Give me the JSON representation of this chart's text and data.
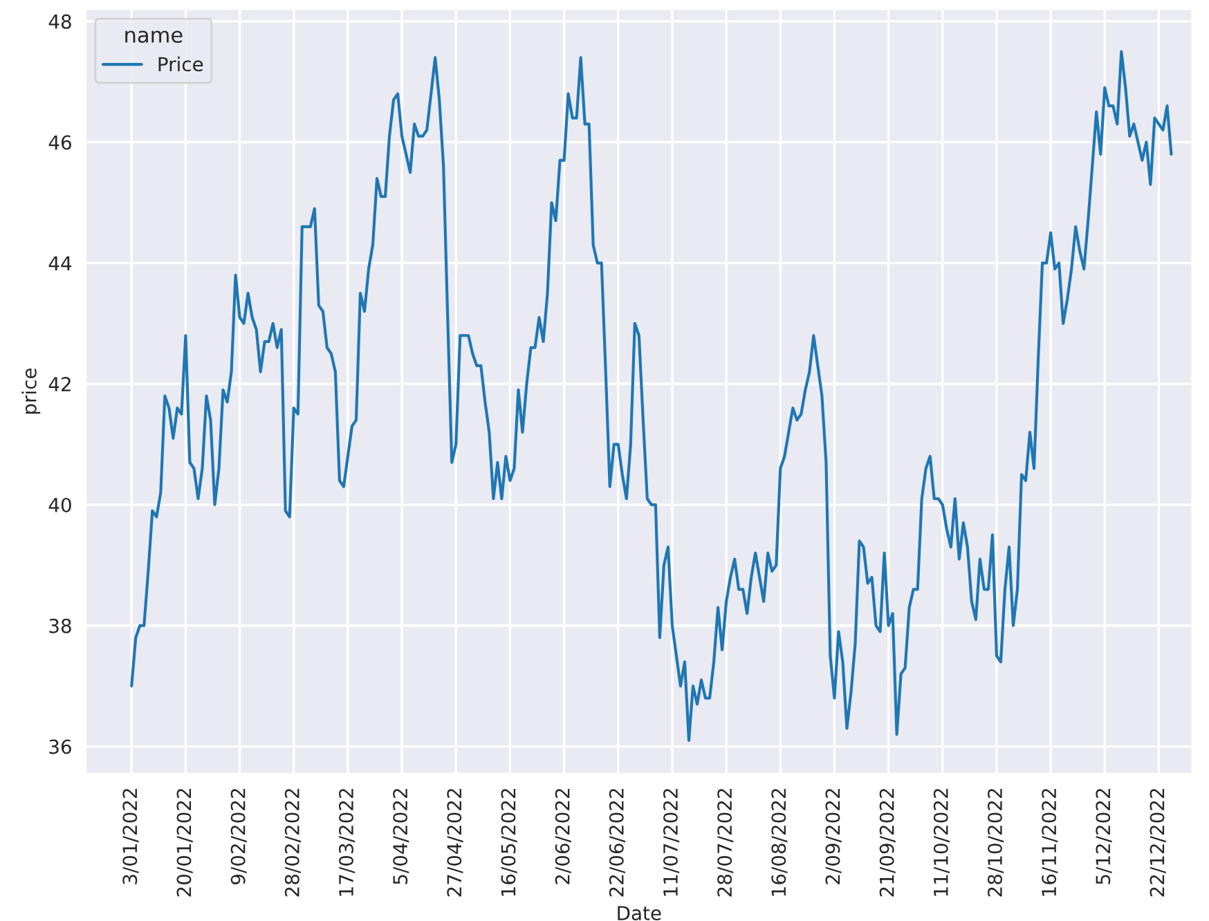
{
  "chart_data": {
    "type": "line",
    "xlabel": "Date",
    "ylabel": "price",
    "legend_title": "name",
    "legend": "top left",
    "grid": true,
    "ylim": [
      35.55,
      48.2
    ],
    "yticks": [
      36,
      38,
      40,
      42,
      44,
      46,
      48
    ],
    "categories": [
      "3/01/2022",
      null,
      null,
      null,
      null,
      null,
      null,
      null,
      null,
      null,
      null,
      null,
      null,
      "20/01/2022",
      null,
      null,
      null,
      null,
      null,
      null,
      null,
      null,
      null,
      null,
      null,
      null,
      "9/02/2022",
      null,
      null,
      null,
      null,
      null,
      null,
      null,
      null,
      null,
      null,
      null,
      null,
      "28/02/2022",
      null,
      null,
      null,
      null,
      null,
      null,
      null,
      null,
      null,
      null,
      null,
      null,
      "17/03/2022",
      null,
      null,
      null,
      null,
      null,
      null,
      null,
      null,
      null,
      null,
      null,
      null,
      "5/04/2022",
      null,
      null,
      null,
      null,
      null,
      null,
      null,
      null,
      null,
      null,
      null,
      null,
      "27/04/2022",
      null,
      null,
      null,
      null,
      null,
      null,
      null,
      null,
      null,
      null,
      null,
      null,
      "16/05/2022",
      null,
      null,
      null,
      null,
      null,
      null,
      null,
      null,
      null,
      null,
      null,
      null,
      "2/06/2022",
      null,
      null,
      null,
      null,
      null,
      null,
      null,
      null,
      null,
      null,
      null,
      null,
      "22/06/2022",
      null,
      null,
      null,
      null,
      null,
      null,
      null,
      null,
      null,
      null,
      null,
      null,
      "11/07/2022",
      null,
      null,
      null,
      null,
      null,
      null,
      null,
      null,
      null,
      null,
      null,
      null,
      "28/07/2022",
      null,
      null,
      null,
      null,
      null,
      null,
      null,
      null,
      null,
      null,
      null,
      null,
      "16/08/2022",
      null,
      null,
      null,
      null,
      null,
      null,
      null,
      null,
      null,
      null,
      null,
      null,
      "2/09/2022",
      null,
      null,
      null,
      null,
      null,
      null,
      null,
      null,
      null,
      null,
      null,
      null,
      "21/09/2022",
      null,
      null,
      null,
      null,
      null,
      null,
      null,
      null,
      null,
      null,
      null,
      null,
      "11/10/2022",
      null,
      null,
      null,
      null,
      null,
      null,
      null,
      null,
      null,
      null,
      null,
      null,
      "28/10/2022",
      null,
      null,
      null,
      null,
      null,
      null,
      null,
      null,
      null,
      null,
      null,
      null,
      "16/11/2022",
      null,
      null,
      null,
      null,
      null,
      null,
      null,
      null,
      null,
      null,
      null,
      null,
      "5/12/2022",
      null,
      null,
      null,
      null,
      null,
      null,
      null,
      null,
      null,
      null,
      null,
      null,
      "22/12/2022",
      null,
      null,
      null
    ],
    "series": [
      {
        "name": "Price",
        "color": "#1f77b4",
        "values": [
          37.0,
          37.8,
          38.0,
          38.0,
          38.9,
          39.9,
          39.8,
          40.2,
          41.8,
          41.6,
          41.1,
          41.6,
          41.5,
          42.8,
          40.7,
          40.6,
          40.1,
          40.6,
          41.8,
          41.4,
          40.0,
          40.6,
          41.9,
          41.7,
          42.2,
          43.8,
          43.1,
          43.0,
          43.5,
          43.1,
          42.9,
          42.2,
          42.7,
          42.7,
          43.0,
          42.6,
          42.9,
          39.9,
          39.8,
          41.6,
          41.5,
          44.6,
          44.6,
          44.6,
          44.9,
          43.3,
          43.2,
          42.6,
          42.5,
          42.2,
          40.4,
          40.3,
          40.8,
          41.3,
          41.4,
          43.5,
          43.2,
          43.9,
          44.3,
          45.4,
          45.1,
          45.1,
          46.1,
          46.7,
          46.8,
          46.1,
          45.8,
          45.5,
          46.3,
          46.1,
          46.1,
          46.2,
          46.8,
          47.4,
          46.7,
          45.6,
          43.1,
          40.7,
          41.0,
          42.8,
          42.8,
          42.8,
          42.5,
          42.3,
          42.3,
          41.7,
          41.2,
          40.1,
          40.7,
          40.1,
          40.8,
          40.4,
          40.6,
          41.9,
          41.2,
          42.0,
          42.6,
          42.6,
          43.1,
          42.7,
          43.5,
          45.0,
          44.7,
          45.7,
          45.7,
          46.8,
          46.4,
          46.4,
          47.4,
          46.3,
          46.3,
          44.3,
          44.0,
          44.0,
          42.2,
          40.3,
          41.0,
          41.0,
          40.5,
          40.1,
          41.0,
          43.0,
          42.8,
          41.4,
          40.1,
          40.0,
          40.0,
          37.8,
          39.0,
          39.3,
          38.0,
          37.5,
          37.0,
          37.4,
          36.1,
          37.0,
          36.7,
          37.1,
          36.8,
          36.8,
          37.4,
          38.3,
          37.6,
          38.4,
          38.8,
          39.1,
          38.6,
          38.6,
          38.2,
          38.8,
          39.2,
          38.8,
          38.4,
          39.2,
          38.9,
          39.0,
          40.6,
          40.8,
          41.2,
          41.6,
          41.4,
          41.5,
          41.9,
          42.2,
          42.8,
          42.3,
          41.8,
          40.7,
          37.5,
          36.8,
          37.9,
          37.4,
          36.3,
          36.9,
          37.7,
          39.4,
          39.3,
          38.7,
          38.8,
          38.0,
          37.9,
          39.2,
          38.0,
          38.2,
          36.2,
          37.2,
          37.3,
          38.3,
          38.6,
          38.6,
          40.1,
          40.6,
          40.8,
          40.1,
          40.1,
          40.0,
          39.6,
          39.3,
          40.1,
          39.1,
          39.7,
          39.3,
          38.4,
          38.1,
          39.1,
          38.6,
          38.6,
          39.5,
          37.5,
          37.4,
          38.6,
          39.3,
          38.0,
          38.6,
          40.5,
          40.4,
          41.2,
          40.6,
          42.4,
          44.0,
          44.0,
          44.5,
          43.9,
          44.0,
          43.0,
          43.4,
          43.9,
          44.6,
          44.2,
          43.9,
          44.7,
          45.6,
          46.5,
          45.8,
          46.9,
          46.6,
          46.6,
          46.3,
          47.5,
          46.9,
          46.1,
          46.3,
          46.0,
          45.7,
          46.0,
          45.3,
          46.4,
          46.3,
          46.2,
          46.6,
          45.8
        ]
      }
    ]
  }
}
